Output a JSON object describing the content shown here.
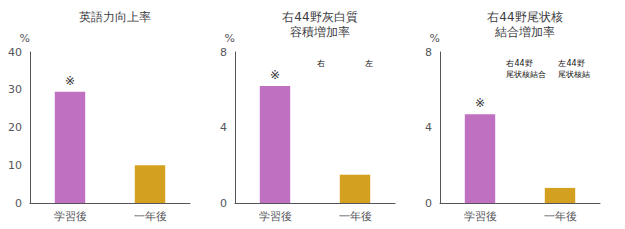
{
  "chart_data": [
    {
      "type": "bar",
      "title": "英語力向上率",
      "ylabel": "%",
      "categories": [
        "学習後",
        "一年後"
      ],
      "values": [
        29.5,
        10.0
      ],
      "colors": [
        "#c070c0",
        "#d4a020"
      ],
      "ylim": [
        0,
        40
      ],
      "yticks": [
        0,
        10,
        20,
        30,
        40
      ],
      "grid": false,
      "annotations": [
        {
          "text": "※",
          "at": "学習後"
        }
      ]
    },
    {
      "type": "bar",
      "title": "右44野灰白質\n容積増加率",
      "ylabel": "%",
      "categories": [
        "学習後",
        "一年後"
      ],
      "values": [
        6.2,
        1.5
      ],
      "colors": [
        "#c070c0",
        "#d4a020"
      ],
      "ylim": [
        0,
        8
      ],
      "yticks": [
        0,
        4,
        8
      ],
      "grid": false,
      "annotations": [
        {
          "text": "※",
          "at": "学習後"
        },
        {
          "text": "右"
        },
        {
          "text": "左"
        }
      ]
    },
    {
      "type": "bar",
      "title": "右44野尾状核\n結合増加率",
      "ylabel": "%",
      "categories": [
        "学習後",
        "一年後"
      ],
      "values": [
        4.7,
        0.8
      ],
      "colors": [
        "#c070c0",
        "#d4a020"
      ],
      "ylim": [
        0,
        8
      ],
      "yticks": [
        0,
        4,
        8
      ],
      "grid": false,
      "annotations": [
        {
          "text": "※",
          "at": "学習後"
        },
        {
          "text": "右44野\n尾状核結合"
        },
        {
          "text": "左44野\n尾状核結"
        }
      ]
    }
  ]
}
